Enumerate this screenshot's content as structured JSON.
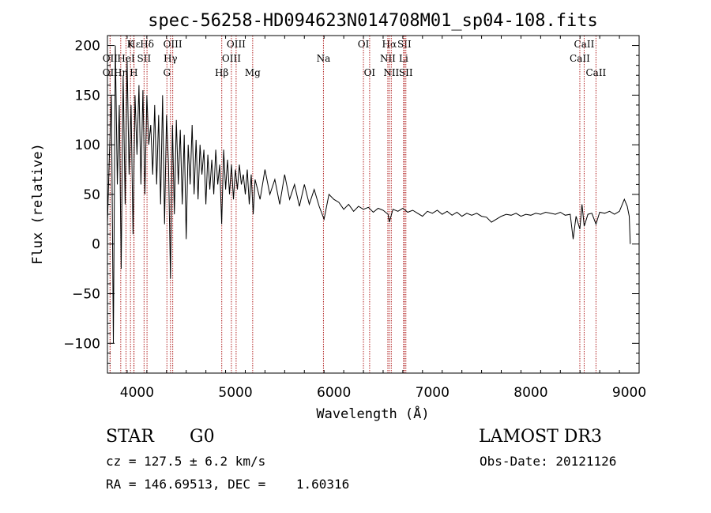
{
  "chart_data": {
    "type": "line",
    "title": "spec-56258-HD094623N014708M01_sp04-108.fits",
    "xlabel": "Wavelength (Å)",
    "ylabel": "Flux (relative)",
    "xlim": [
      3700,
      9100
    ],
    "ylim": [
      -130,
      210
    ],
    "x_ticks": [
      4000,
      5000,
      6000,
      7000,
      8000,
      9000
    ],
    "y_ticks": [
      -100,
      -50,
      0,
      50,
      100,
      150,
      200
    ],
    "grid": false,
    "series": [
      {
        "name": "flux",
        "color": "#000000",
        "points": [
          [
            3700,
            20
          ],
          [
            3720,
            90
          ],
          [
            3740,
            150
          ],
          [
            3760,
            -100
          ],
          [
            3780,
            200
          ],
          [
            3800,
            60
          ],
          [
            3820,
            140
          ],
          [
            3840,
            -25
          ],
          [
            3860,
            170
          ],
          [
            3880,
            40
          ],
          [
            3900,
            185
          ],
          [
            3920,
            70
          ],
          [
            3940,
            140
          ],
          [
            3960,
            10
          ],
          [
            3980,
            150
          ],
          [
            4000,
            90
          ],
          [
            4020,
            160
          ],
          [
            4040,
            60
          ],
          [
            4060,
            155
          ],
          [
            4080,
            50
          ],
          [
            4100,
            150
          ],
          [
            4120,
            100
          ],
          [
            4140,
            120
          ],
          [
            4160,
            70
          ],
          [
            4180,
            140
          ],
          [
            4200,
            60
          ],
          [
            4220,
            130
          ],
          [
            4240,
            40
          ],
          [
            4260,
            150
          ],
          [
            4280,
            20
          ],
          [
            4300,
            130
          ],
          [
            4320,
            80
          ],
          [
            4340,
            -35
          ],
          [
            4360,
            120
          ],
          [
            4380,
            30
          ],
          [
            4400,
            125
          ],
          [
            4420,
            60
          ],
          [
            4440,
            115
          ],
          [
            4460,
            40
          ],
          [
            4480,
            110
          ],
          [
            4500,
            5
          ],
          [
            4520,
            100
          ],
          [
            4540,
            60
          ],
          [
            4560,
            120
          ],
          [
            4580,
            50
          ],
          [
            4600,
            105
          ],
          [
            4620,
            45
          ],
          [
            4640,
            100
          ],
          [
            4660,
            70
          ],
          [
            4680,
            95
          ],
          [
            4700,
            40
          ],
          [
            4720,
            90
          ],
          [
            4740,
            55
          ],
          [
            4760,
            85
          ],
          [
            4780,
            50
          ],
          [
            4800,
            95
          ],
          [
            4820,
            60
          ],
          [
            4840,
            80
          ],
          [
            4860,
            20
          ],
          [
            4880,
            95
          ],
          [
            4900,
            55
          ],
          [
            4920,
            85
          ],
          [
            4940,
            50
          ],
          [
            4960,
            80
          ],
          [
            4980,
            45
          ],
          [
            5000,
            75
          ],
          [
            5020,
            55
          ],
          [
            5040,
            80
          ],
          [
            5060,
            60
          ],
          [
            5080,
            70
          ],
          [
            5100,
            50
          ],
          [
            5120,
            75
          ],
          [
            5140,
            40
          ],
          [
            5160,
            70
          ],
          [
            5180,
            30
          ],
          [
            5200,
            65
          ],
          [
            5250,
            45
          ],
          [
            5300,
            75
          ],
          [
            5350,
            50
          ],
          [
            5400,
            65
          ],
          [
            5450,
            40
          ],
          [
            5500,
            70
          ],
          [
            5550,
            45
          ],
          [
            5600,
            60
          ],
          [
            5650,
            38
          ],
          [
            5700,
            60
          ],
          [
            5750,
            40
          ],
          [
            5800,
            55
          ],
          [
            5850,
            38
          ],
          [
            5900,
            25
          ],
          [
            5950,
            50
          ],
          [
            6000,
            45
          ],
          [
            6050,
            42
          ],
          [
            6100,
            35
          ],
          [
            6150,
            40
          ],
          [
            6200,
            33
          ],
          [
            6250,
            38
          ],
          [
            6300,
            35
          ],
          [
            6350,
            37
          ],
          [
            6400,
            32
          ],
          [
            6450,
            36
          ],
          [
            6500,
            34
          ],
          [
            6550,
            30
          ],
          [
            6563,
            22
          ],
          [
            6600,
            35
          ],
          [
            6650,
            33
          ],
          [
            6700,
            36
          ],
          [
            6750,
            32
          ],
          [
            6800,
            34
          ],
          [
            6850,
            31
          ],
          [
            6900,
            28
          ],
          [
            6950,
            33
          ],
          [
            7000,
            31
          ],
          [
            7050,
            34
          ],
          [
            7100,
            30
          ],
          [
            7150,
            33
          ],
          [
            7200,
            29
          ],
          [
            7250,
            32
          ],
          [
            7300,
            28
          ],
          [
            7350,
            31
          ],
          [
            7400,
            29
          ],
          [
            7450,
            31
          ],
          [
            7500,
            28
          ],
          [
            7550,
            27
          ],
          [
            7600,
            22
          ],
          [
            7650,
            25
          ],
          [
            7700,
            28
          ],
          [
            7750,
            30
          ],
          [
            7800,
            29
          ],
          [
            7850,
            31
          ],
          [
            7900,
            28
          ],
          [
            7950,
            30
          ],
          [
            8000,
            29
          ],
          [
            8050,
            31
          ],
          [
            8100,
            30
          ],
          [
            8150,
            32
          ],
          [
            8200,
            31
          ],
          [
            8250,
            30
          ],
          [
            8300,
            32
          ],
          [
            8350,
            29
          ],
          [
            8400,
            30
          ],
          [
            8430,
            5
          ],
          [
            8460,
            28
          ],
          [
            8498,
            15
          ],
          [
            8520,
            40
          ],
          [
            8542,
            18
          ],
          [
            8580,
            30
          ],
          [
            8620,
            31
          ],
          [
            8662,
            20
          ],
          [
            8700,
            32
          ],
          [
            8750,
            31
          ],
          [
            8800,
            33
          ],
          [
            8850,
            30
          ],
          [
            8900,
            33
          ],
          [
            8950,
            45
          ],
          [
            8980,
            38
          ],
          [
            9000,
            28
          ],
          [
            9010,
            0
          ]
        ]
      }
    ],
    "line_markers": [
      {
        "label": "Hε",
        "x": 3970,
        "row": 1
      },
      {
        "label": "K",
        "x": 3934,
        "row": 1
      },
      {
        "label": "H",
        "x": 3968,
        "row": 3
      },
      {
        "label": "Hδ",
        "x": 4102,
        "row": 1
      },
      {
        "label": "OII",
        "x": 3727,
        "row": 2
      },
      {
        "label": "OIII",
        "x": 4363,
        "row": 1
      },
      {
        "label": "Hγ",
        "x": 4340,
        "row": 2
      },
      {
        "label": "G",
        "x": 4304,
        "row": 3
      },
      {
        "label": "OII",
        "x": 3727,
        "row": 3
      },
      {
        "label": "HeI",
        "x": 3889,
        "row": 2
      },
      {
        "label": "SII",
        "x": 4072,
        "row": 2
      },
      {
        "label": "Hη",
        "x": 3835,
        "row": 3
      },
      {
        "label": "OIII",
        "x": 5007,
        "row": 1
      },
      {
        "label": "OIII",
        "x": 4959,
        "row": 2
      },
      {
        "label": "Hβ",
        "x": 4861,
        "row": 3
      },
      {
        "label": "Mg",
        "x": 5175,
        "row": 3
      },
      {
        "label": "Na",
        "x": 5894,
        "row": 2
      },
      {
        "label": "OI",
        "x": 6300,
        "row": 1
      },
      {
        "label": "OI",
        "x": 6363,
        "row": 3
      },
      {
        "label": "Hα",
        "x": 6563,
        "row": 1
      },
      {
        "label": "SII",
        "x": 6716,
        "row": 1
      },
      {
        "label": "NII",
        "x": 6548,
        "row": 2
      },
      {
        "label": "Li",
        "x": 6708,
        "row": 2
      },
      {
        "label": "NII",
        "x": 6583,
        "row": 3
      },
      {
        "label": "SII",
        "x": 6731,
        "row": 3
      },
      {
        "label": "CaII",
        "x": 8542,
        "row": 1
      },
      {
        "label": "CaII",
        "x": 8498,
        "row": 2
      },
      {
        "label": "CaII",
        "x": 8662,
        "row": 3
      }
    ]
  },
  "info": {
    "class_label": "STAR",
    "subclass_label": "G0",
    "survey": "LAMOST DR3",
    "cz": "cz = 127.5 ± 6.2 km/s",
    "obs_date": "Obs-Date: 20121126",
    "radec": "RA = 146.69513, DEC =    1.60316"
  }
}
